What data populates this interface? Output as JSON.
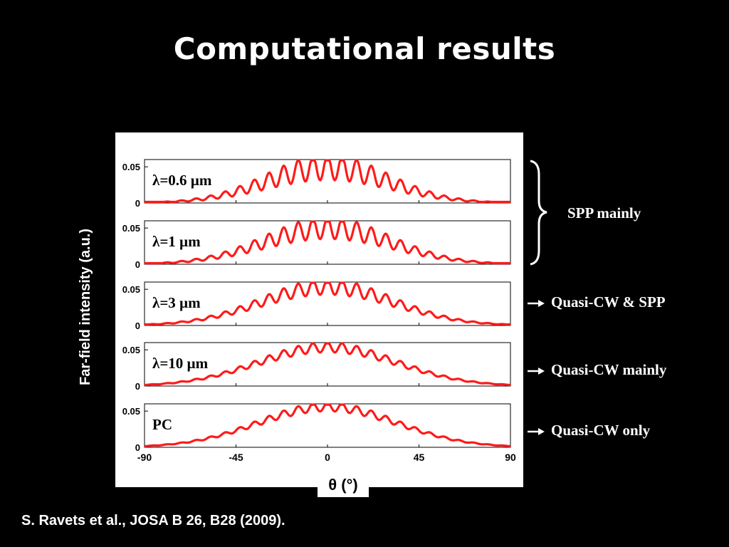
{
  "slide": {
    "title": "Computational results",
    "citation": "S. Ravets et al., JOSA B 26, B28 (2009)."
  },
  "chart_data": {
    "type": "line",
    "xlabel": "θ (°)",
    "ylabel": "Far-field intensity (a.u.)",
    "xlim": [
      -90,
      90
    ],
    "ylim": [
      0,
      0.06
    ],
    "x_ticks": [
      "-90",
      "-45",
      "0",
      "45",
      "90"
    ],
    "x_tick_values": [
      -90,
      -45,
      0,
      45,
      90
    ],
    "y_ticks": [
      "0",
      "0.05"
    ],
    "y_tick_values": [
      0,
      0.05
    ],
    "line_color": "#ff1a1a",
    "series": [
      {
        "name": "λ=0.6 µm",
        "peak": 0.0555,
        "width": 42,
        "ripple": 0.36,
        "period": 7.2
      },
      {
        "name": "λ=1 µm",
        "peak": 0.055,
        "width": 44,
        "ripple": 0.3,
        "period": 7.2
      },
      {
        "name": "λ=3 µm",
        "peak": 0.057,
        "width": 46,
        "ripple": 0.2,
        "period": 7.2
      },
      {
        "name": "λ=10 µm",
        "peak": 0.056,
        "width": 48,
        "ripple": 0.13,
        "period": 7.2
      },
      {
        "name": "PC",
        "peak": 0.058,
        "width": 48,
        "ripple": 0.11,
        "period": 7.2
      }
    ],
    "annotations": [
      {
        "text": "SPP mainly",
        "marker": "brace",
        "panels": [
          0,
          1
        ]
      },
      {
        "text": "Quasi-CW & SPP",
        "marker": "arrow",
        "panels": [
          2
        ]
      },
      {
        "text": "Quasi-CW mainly",
        "marker": "arrow",
        "panels": [
          3
        ]
      },
      {
        "text": "Quasi-CW only",
        "marker": "arrow",
        "panels": [
          4
        ]
      }
    ]
  }
}
